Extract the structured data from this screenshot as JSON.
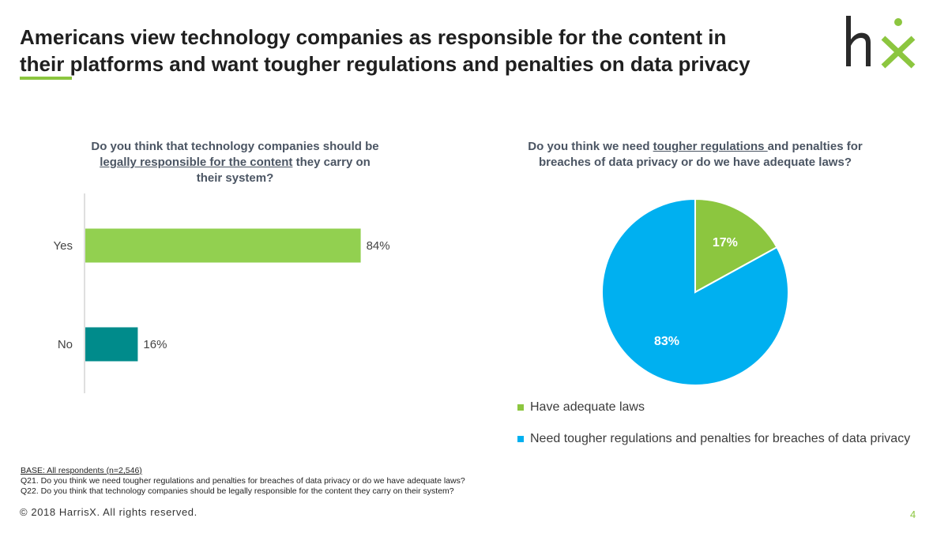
{
  "header": {
    "title_line1": "Americans view technology companies as responsible for the content in",
    "title_line2": "their platforms and want tougher regulations and penalties on data privacy",
    "logo_text": "hx",
    "brand_green": "#8cc63f",
    "brand_dark": "#2a2a2a"
  },
  "left_question": {
    "part1": "Do you think that technology companies should be",
    "underlined": "legally responsible for the content",
    "part2": " they carry on their system?"
  },
  "right_question": {
    "part1": "Do you think we need ",
    "underlined": "tougher regulations ",
    "part2": "and penalties for breaches of data privacy or do we have adequate laws?"
  },
  "chart_data": [
    {
      "type": "bar",
      "orientation": "horizontal",
      "categories": [
        "Yes",
        "No"
      ],
      "values": [
        84,
        16
      ],
      "value_labels": [
        "84%",
        "16%"
      ],
      "colors": [
        "#92d050",
        "#008b8b"
      ],
      "xlim": [
        0,
        100
      ],
      "grid": false
    },
    {
      "type": "pie",
      "labels": [
        "Have adequate laws",
        "Need tougher regulations and penalties for breaches of data privacy"
      ],
      "values": [
        17,
        83
      ],
      "value_labels": [
        "17%",
        "83%"
      ],
      "colors": [
        "#8cc63f",
        "#00b0f0"
      ],
      "legend_position": "bottom"
    }
  ],
  "footnote": {
    "base": "BASE: All respondents (n=2,546)",
    "q21": "Q21. Do you think we need tougher regulations and penalties for breaches of data privacy or do we have adequate laws?",
    "q22": "Q22. Do you think that technology companies should be legally responsible for the content they carry on their system?"
  },
  "footer": {
    "copyright": "© 2018 HarrisX. All rights reserved.",
    "page_number": "4"
  }
}
